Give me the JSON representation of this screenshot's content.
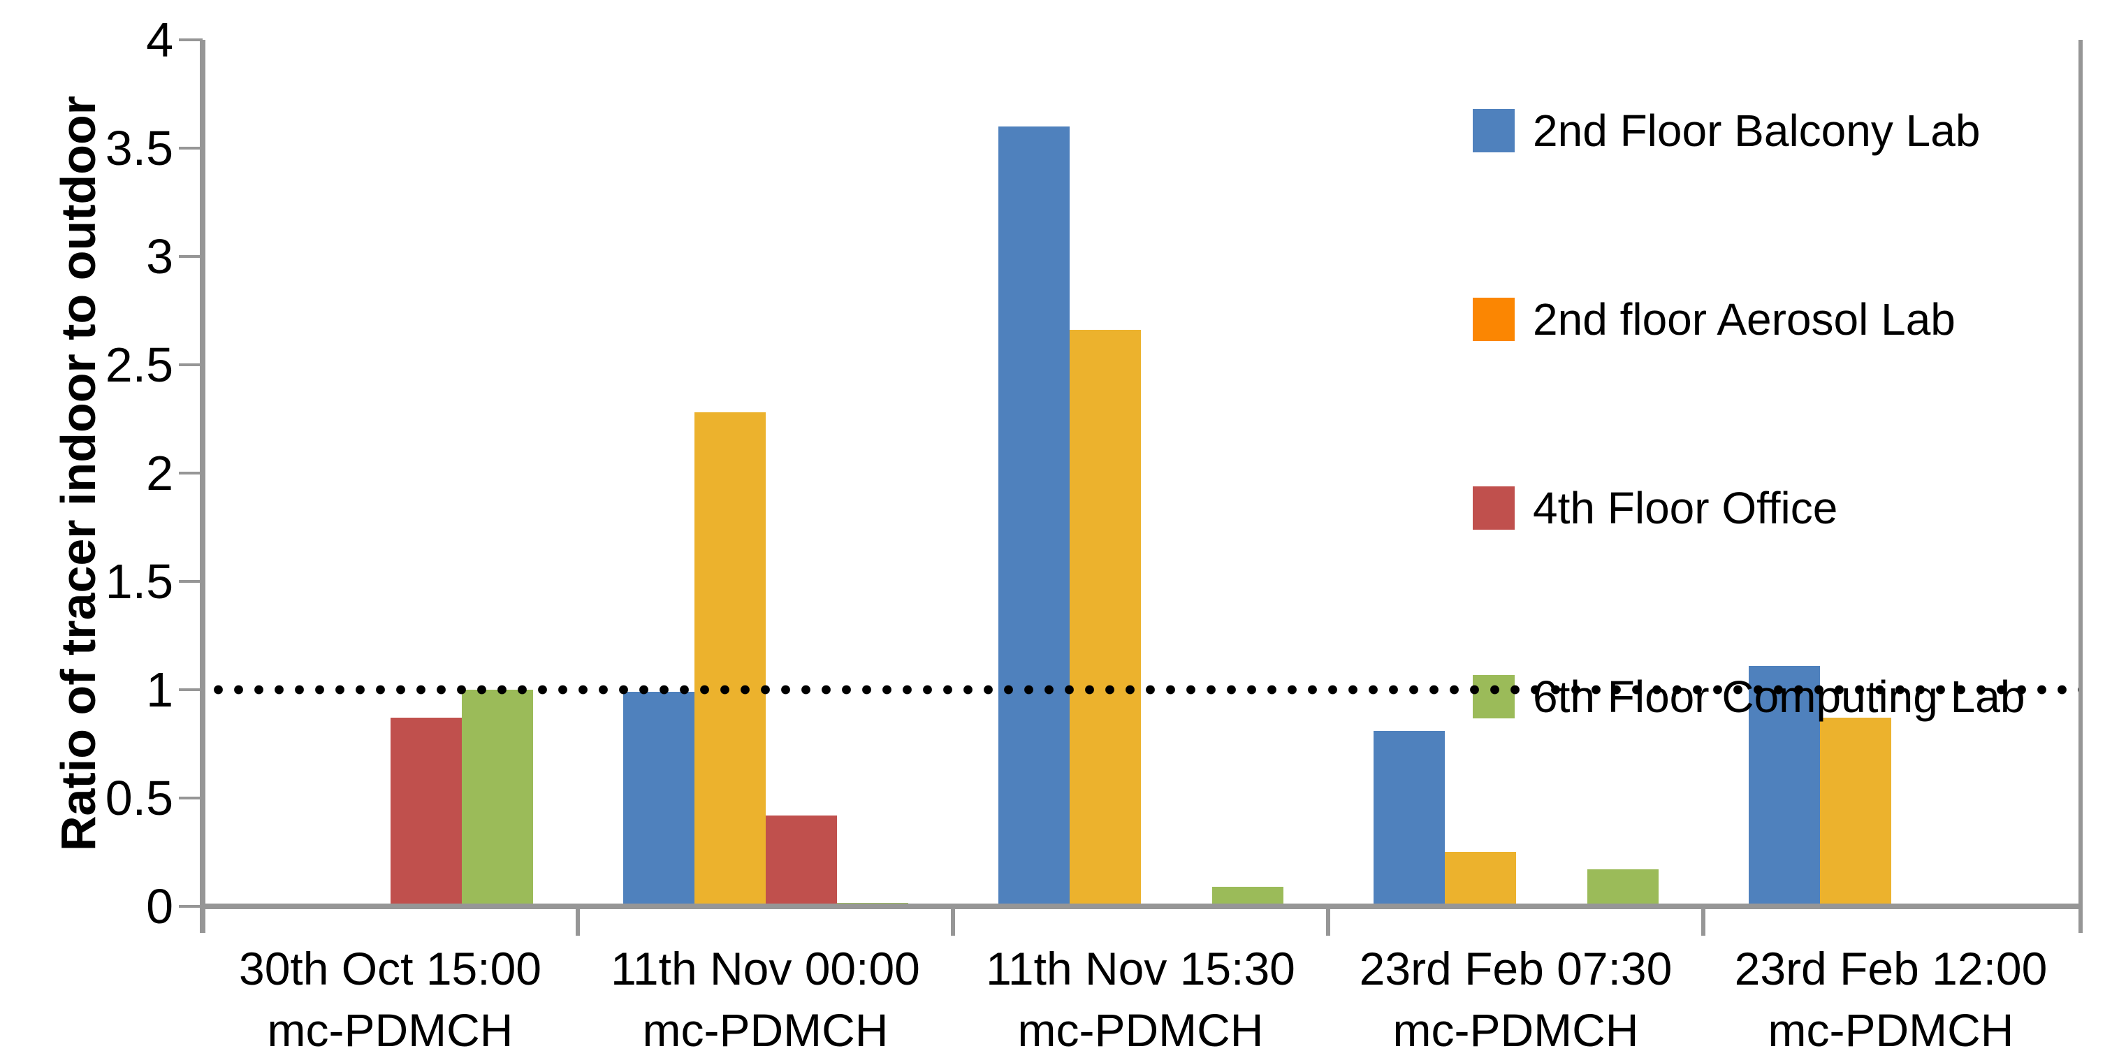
{
  "figure": {
    "background_color": "#ffffff",
    "axis_color": "#969696",
    "text_color": "#000000"
  },
  "chart_data": {
    "type": "bar",
    "title": "",
    "xlabel": "",
    "ylabel": "Ratio of tracer indoor  to outdoor",
    "ylim": [
      0,
      4
    ],
    "ytick_step": 0.5,
    "yticks": [
      "4",
      "3.5",
      "3",
      "2.5",
      "2",
      "1.5",
      "1",
      "0.5",
      "0"
    ],
    "grid": false,
    "legend_position": "upper right",
    "reference_line": {
      "y": 1.0,
      "style": "dotted",
      "color": "#000000"
    },
    "categories": [
      {
        "line1": "30th Oct 15:00",
        "line2": "mc-PDMCH"
      },
      {
        "line1": "11th Nov 00:00",
        "line2": "mc-PDMCH"
      },
      {
        "line1": "11th Nov 15:30",
        "line2": "mc-PDMCH"
      },
      {
        "line1": "23rd Feb 07:30",
        "line2": "mc-PDMCH"
      },
      {
        "line1": "23rd Feb 12:00",
        "line2": "mc-PDMCH"
      }
    ],
    "series": [
      {
        "name": "2nd Floor Balcony Lab",
        "bar_color": "#4F81BD",
        "legend_color": "#4F81BD",
        "values": [
          0,
          0.99,
          3.6,
          0.81,
          1.11
        ]
      },
      {
        "name": "2nd floor Aerosol Lab",
        "bar_color": "#ECB22D",
        "legend_color": "#FB8602",
        "values": [
          0,
          2.28,
          2.66,
          0.25,
          0.87
        ]
      },
      {
        "name": "4th Floor Office",
        "bar_color": "#C0504D",
        "legend_color": "#C0504D",
        "values": [
          0.87,
          0.42,
          0,
          0,
          0
        ]
      },
      {
        "name": "6th Floor Computing Lab",
        "bar_color": "#9BBB59",
        "legend_color": "#9BBB59",
        "values": [
          1.0,
          0.015,
          0.09,
          0.17,
          0
        ]
      }
    ]
  }
}
